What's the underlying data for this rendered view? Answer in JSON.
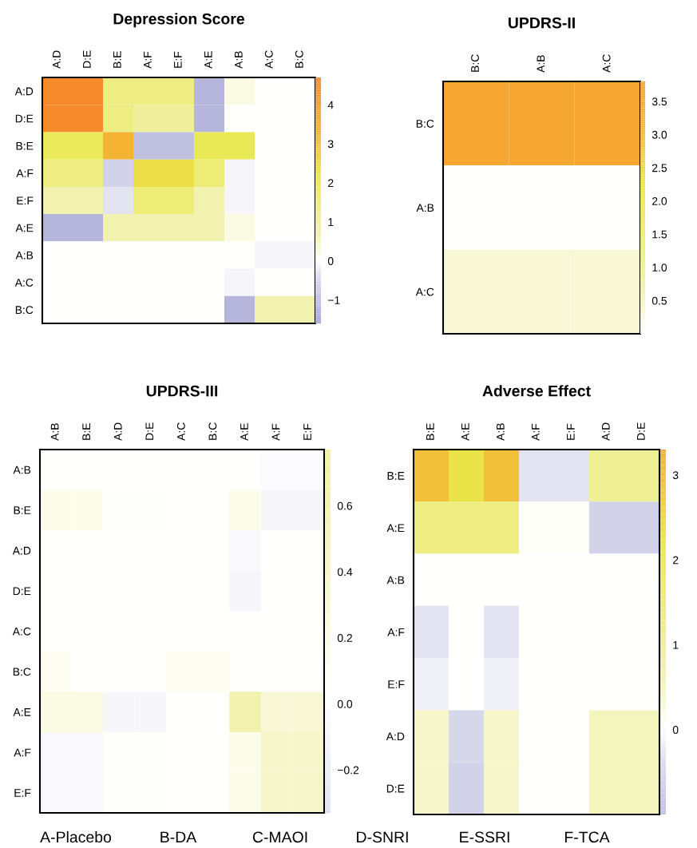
{
  "chart_data": [
    {
      "type": "heatmap",
      "title": "Depression Score",
      "categories": [
        "A:D",
        "D:E",
        "B:E",
        "A:F",
        "E:F",
        "A:E",
        "A:B",
        "A:C",
        "B:C"
      ],
      "y_categories": [
        "A:D",
        "D:E",
        "B:E",
        "A:F",
        "E:F",
        "A:E",
        "A:B",
        "A:C",
        "B:C"
      ],
      "cells": [
        [
          4.5,
          4.5,
          1.3,
          1.3,
          1.3,
          -1.2,
          0.2,
          0,
          0
        ],
        [
          4.5,
          4.5,
          1.3,
          0.9,
          0.9,
          -1.2,
          0,
          0,
          0
        ],
        [
          1.9,
          1.9,
          3.2,
          -1.0,
          -1.0,
          2.0,
          2.0,
          0,
          0
        ],
        [
          1.3,
          1.3,
          -0.6,
          2.4,
          2.4,
          1.5,
          -0.1,
          0,
          0
        ],
        [
          0.6,
          0.6,
          -0.3,
          1.5,
          1.5,
          0.6,
          -0.1,
          0,
          0
        ],
        [
          -1.2,
          -1.2,
          0.6,
          0.6,
          0.6,
          0.6,
          0.2,
          0,
          0
        ],
        [
          0,
          0,
          0,
          0,
          0,
          0,
          0,
          -0.1,
          -0.1
        ],
        [
          0,
          0,
          0,
          0,
          0,
          0,
          -0.1,
          0,
          0
        ],
        [
          0,
          0,
          0,
          0,
          0,
          0,
          -1.2,
          0.6,
          0.6
        ]
      ],
      "clim": [
        -1.6,
        4.7
      ],
      "cticks": [
        {
          "value": -1,
          "label": "−1"
        },
        0,
        1,
        2,
        3,
        4
      ]
    },
    {
      "type": "heatmap",
      "title": "UPDRS-II",
      "categories": [
        "B:C",
        "A:B",
        "A:C"
      ],
      "y_categories": [
        "B:C",
        "A:B",
        "A:C"
      ],
      "cells": [
        [
          3.6,
          3.6,
          3.6
        ],
        [
          0,
          0,
          0
        ],
        [
          0.3,
          0.3,
          0.3
        ]
      ],
      "clim": [
        0,
        3.8
      ],
      "cticks": [
        0.5,
        {
          "value": 1,
          "label": "1.0"
        },
        1.5,
        {
          "value": 2,
          "label": "2.0"
        },
        2.5,
        {
          "value": 3,
          "label": "3.0"
        },
        3.5
      ]
    },
    {
      "type": "heatmap",
      "title": "UPDRS-III",
      "categories": [
        "A:B",
        "B:E",
        "A:D",
        "D:E",
        "A:C",
        "B:C",
        "A:E",
        "A:F",
        "E:F"
      ],
      "y_categories": [
        "A:B",
        "B:E",
        "A:D",
        "D:E",
        "A:C",
        "B:C",
        "A:E",
        "A:F",
        "E:F"
      ],
      "cells": [
        [
          0,
          0.02,
          0.02,
          0.02,
          0.02,
          0.02,
          0,
          -0.03,
          -0.03
        ],
        [
          0.15,
          0.15,
          0.04,
          0.04,
          0,
          0,
          0.15,
          -0.12,
          -0.12
        ],
        [
          0,
          0,
          0,
          0,
          0,
          0,
          -0.06,
          0.02,
          0.02
        ],
        [
          0.02,
          0.02,
          0.02,
          0.02,
          0,
          0,
          -0.1,
          0.02,
          0.02
        ],
        [
          0,
          0,
          0,
          0,
          0,
          0,
          0,
          0,
          0
        ],
        [
          0.12,
          0,
          0,
          0,
          0.12,
          0.12,
          0,
          0,
          0
        ],
        [
          0.2,
          0.2,
          -0.08,
          -0.08,
          0,
          0,
          0.6,
          0.3,
          0.3
        ],
        [
          -0.06,
          -0.06,
          0.04,
          0.04,
          0,
          0,
          0.15,
          0.4,
          0.4
        ],
        [
          -0.06,
          -0.06,
          0.04,
          0.04,
          0,
          0,
          0.15,
          0.4,
          0.4
        ]
      ],
      "clim": [
        -0.33,
        0.77
      ],
      "cticks": [
        {
          "value": -0.2,
          "label": "−0.2"
        },
        {
          "value": 0,
          "label": "0.0"
        },
        0.2,
        0.4,
        0.6
      ]
    },
    {
      "type": "heatmap",
      "title": "Adverse Effect",
      "categories": [
        "B:E",
        "A:E",
        "A:B",
        "A:F",
        "E:F",
        "A:D",
        "D:E"
      ],
      "y_categories": [
        "B:E",
        "A:E",
        "A:B",
        "A:F",
        "E:F",
        "A:D",
        "D:E"
      ],
      "cells": [
        [
          3.0,
          2.3,
          3.0,
          -0.3,
          -0.3,
          1.0,
          1.0
        ],
        [
          1.3,
          1.3,
          1.3,
          0.05,
          0.05,
          -0.6,
          -0.6
        ],
        [
          0,
          0,
          0,
          0,
          0,
          0,
          0
        ],
        [
          -0.3,
          0,
          -0.3,
          0,
          0,
          0,
          0
        ],
        [
          -0.15,
          0,
          -0.15,
          0,
          0,
          0,
          0
        ],
        [
          0.4,
          -0.5,
          0.4,
          0,
          0,
          0.5,
          0.5
        ],
        [
          0.4,
          -0.6,
          0.4,
          0,
          0,
          0.5,
          0.5
        ]
      ],
      "clim": [
        -1.0,
        3.3
      ],
      "cticks": [
        0,
        1,
        2,
        3
      ],
      "annotations": [
        "A-Placebo",
        "B-DA",
        "C-MAOI",
        "D-SNRI",
        "E-SSRI",
        "F-TCA"
      ]
    }
  ]
}
